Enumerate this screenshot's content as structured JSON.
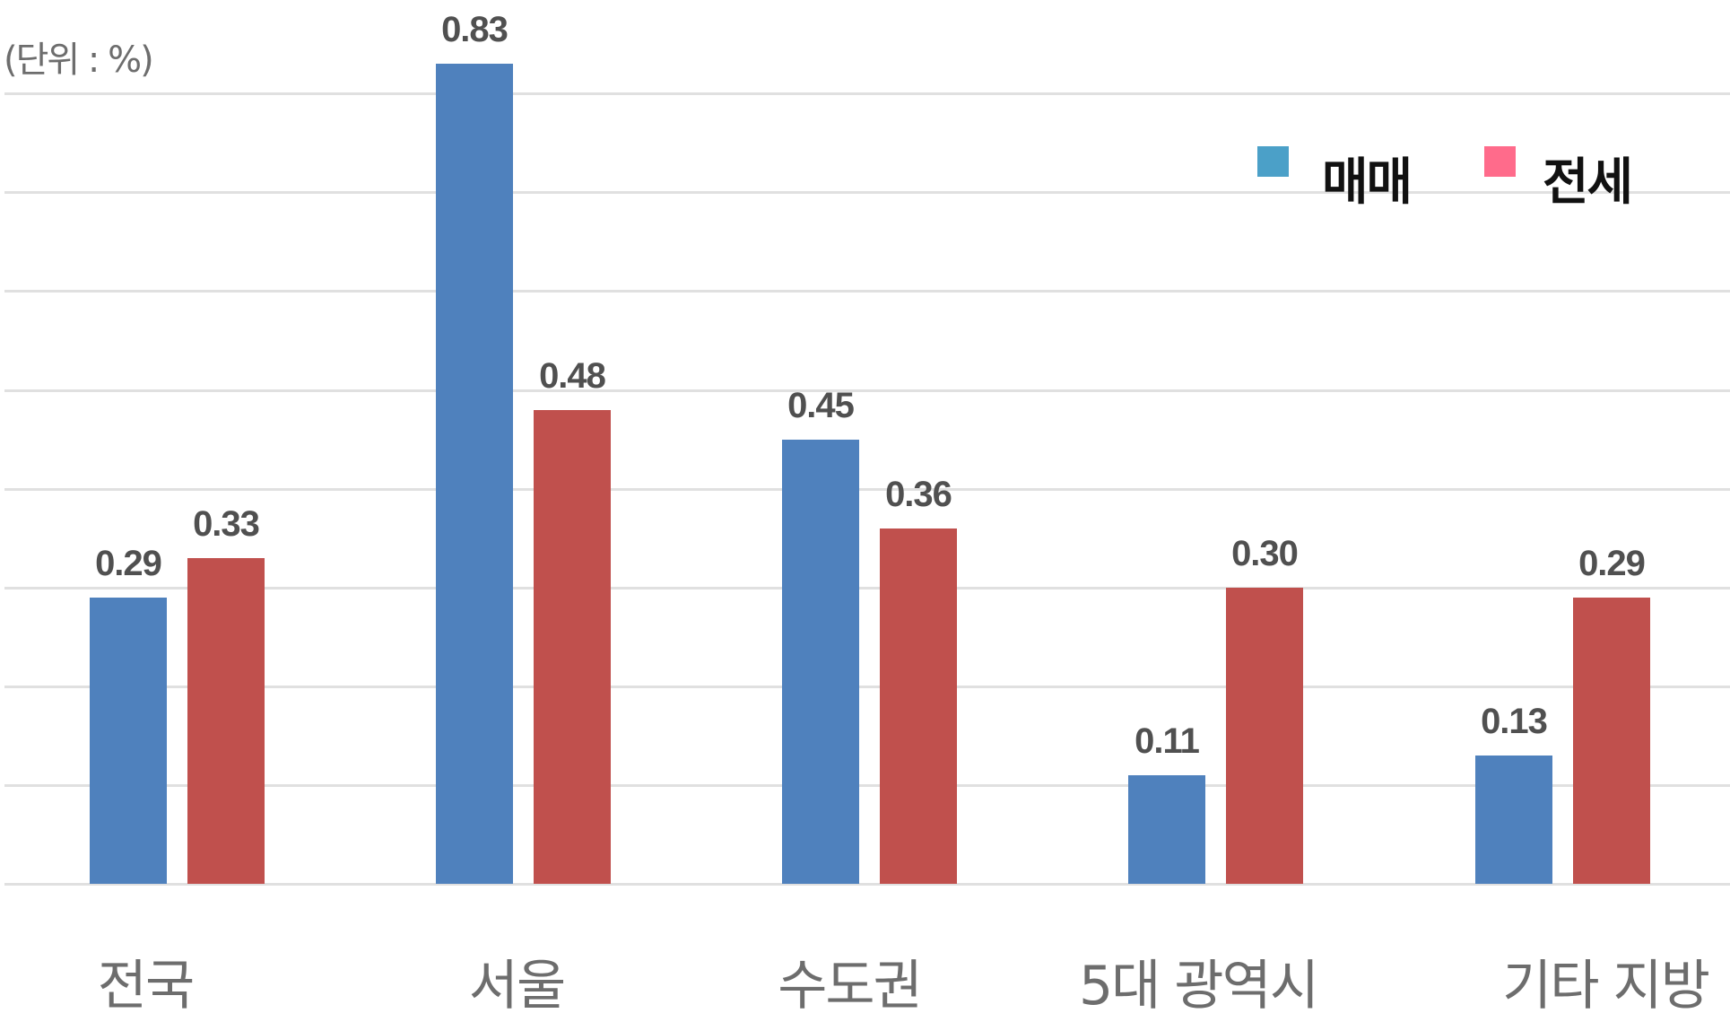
{
  "chart_data": {
    "type": "bar",
    "title": "",
    "unit_label": "(단위 : %)",
    "xlabel": "",
    "ylabel": "%",
    "ylim": [
      0,
      0.8
    ],
    "grid": true,
    "gridline_step": 0.1,
    "legend_position": "top-right",
    "categories": [
      "전국",
      "서울",
      "수도권",
      "5대 광역시",
      "기타 지방"
    ],
    "series": [
      {
        "name": "매매",
        "color": "#4F81BD",
        "legend_color": "#4BA0C8",
        "values": [
          0.29,
          0.83,
          0.45,
          0.11,
          0.13
        ],
        "labels": [
          "0.29",
          "0.83",
          "0.45",
          "0.11",
          "0.13"
        ]
      },
      {
        "name": "전세",
        "color": "#C0504D",
        "legend_color": "#FF6B8B",
        "values": [
          0.33,
          0.48,
          0.36,
          0.3,
          0.29
        ],
        "labels": [
          "0.33",
          "0.48",
          "0.36",
          "0.30",
          "0.29"
        ]
      }
    ]
  },
  "legend": {
    "items": [
      {
        "label": "매매",
        "color": "#4BA0C8"
      },
      {
        "label": "전세",
        "color": "#FF6B8B"
      }
    ]
  },
  "axis": {
    "unit_label": "(단위 : %)"
  }
}
